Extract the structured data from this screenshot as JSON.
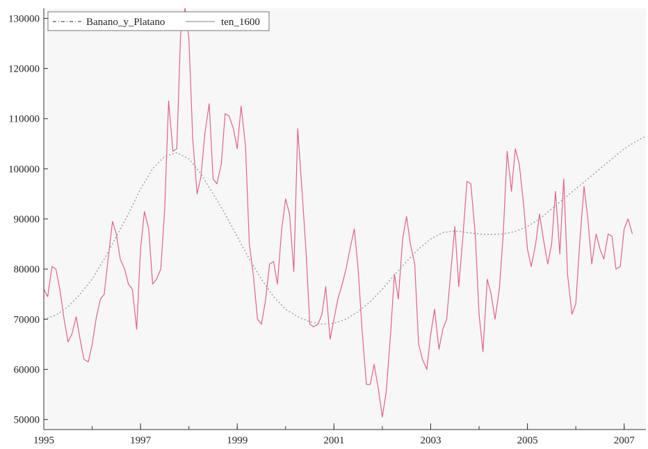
{
  "chart_data": {
    "type": "line",
    "title": "",
    "xlabel": "",
    "ylabel": "",
    "xlim": [
      1995.0,
      2007.45
    ],
    "ylim": [
      48000,
      132000
    ],
    "x_ticks": [
      1995,
      1997,
      1999,
      2001,
      2003,
      2005,
      2007
    ],
    "x_tick_labels": [
      "1995",
      "1997",
      "1999",
      "2001",
      "2003",
      "2005",
      "2007"
    ],
    "y_ticks": [
      50000,
      60000,
      70000,
      80000,
      90000,
      100000,
      110000,
      120000,
      130000
    ],
    "y_tick_labels": [
      "50000",
      "60000",
      "70000",
      "80000",
      "90000",
      "100000",
      "110000",
      "120000",
      "130000"
    ],
    "grid": false,
    "legend_position": "top-left",
    "series": [
      {
        "name": "Banano_y_Platano",
        "color": "#e0608f",
        "style": "solid",
        "points": [
          [
            1995.0,
            76000
          ],
          [
            1995.08,
            74500
          ],
          [
            1995.17,
            80500
          ],
          [
            1995.25,
            80000
          ],
          [
            1995.33,
            76000
          ],
          [
            1995.42,
            70000
          ],
          [
            1995.5,
            65500
          ],
          [
            1995.58,
            67000
          ],
          [
            1995.67,
            70500
          ],
          [
            1995.75,
            66000
          ],
          [
            1995.83,
            62000
          ],
          [
            1995.92,
            61500
          ],
          [
            1996.0,
            65000
          ],
          [
            1996.08,
            70000
          ],
          [
            1996.17,
            74000
          ],
          [
            1996.25,
            75000
          ],
          [
            1996.33,
            82000
          ],
          [
            1996.42,
            89500
          ],
          [
            1996.5,
            87000
          ],
          [
            1996.58,
            82000
          ],
          [
            1996.67,
            80000
          ],
          [
            1996.75,
            77000
          ],
          [
            1996.83,
            76000
          ],
          [
            1996.92,
            68000
          ],
          [
            1997.0,
            84000
          ],
          [
            1997.08,
            91500
          ],
          [
            1997.17,
            88000
          ],
          [
            1997.25,
            77000
          ],
          [
            1997.33,
            78000
          ],
          [
            1997.42,
            80000
          ],
          [
            1997.5,
            92000
          ],
          [
            1997.58,
            113500
          ],
          [
            1997.67,
            103500
          ],
          [
            1997.75,
            104000
          ],
          [
            1997.83,
            127000
          ],
          [
            1997.92,
            132000
          ],
          [
            1998.0,
            126000
          ],
          [
            1998.08,
            106000
          ],
          [
            1998.17,
            95000
          ],
          [
            1998.25,
            98500
          ],
          [
            1998.33,
            107000
          ],
          [
            1998.42,
            113000
          ],
          [
            1998.5,
            98000
          ],
          [
            1998.58,
            97000
          ],
          [
            1998.67,
            101000
          ],
          [
            1998.75,
            111000
          ],
          [
            1998.83,
            110500
          ],
          [
            1998.92,
            108000
          ],
          [
            1999.0,
            104000
          ],
          [
            1999.08,
            112500
          ],
          [
            1999.17,
            104500
          ],
          [
            1999.25,
            85000
          ],
          [
            1999.33,
            79000
          ],
          [
            1999.42,
            70000
          ],
          [
            1999.5,
            69000
          ],
          [
            1999.58,
            73500
          ],
          [
            1999.67,
            81000
          ],
          [
            1999.75,
            81500
          ],
          [
            1999.83,
            77000
          ],
          [
            1999.92,
            88000
          ],
          [
            2000.0,
            94000
          ],
          [
            2000.08,
            91000
          ],
          [
            2000.17,
            79500
          ],
          [
            2000.25,
            108000
          ],
          [
            2000.33,
            97000
          ],
          [
            2000.42,
            84000
          ],
          [
            2000.5,
            69000
          ],
          [
            2000.58,
            68500
          ],
          [
            2000.67,
            69000
          ],
          [
            2000.75,
            71000
          ],
          [
            2000.83,
            76500
          ],
          [
            2000.92,
            66000
          ],
          [
            2001.0,
            70000
          ],
          [
            2001.08,
            74000
          ],
          [
            2001.17,
            77000
          ],
          [
            2001.25,
            80000
          ],
          [
            2001.33,
            84000
          ],
          [
            2001.42,
            88000
          ],
          [
            2001.5,
            80000
          ],
          [
            2001.58,
            68000
          ],
          [
            2001.67,
            57000
          ],
          [
            2001.75,
            57000
          ],
          [
            2001.83,
            61000
          ],
          [
            2001.92,
            56000
          ],
          [
            2002.0,
            50500
          ],
          [
            2002.08,
            55500
          ],
          [
            2002.17,
            67000
          ],
          [
            2002.25,
            79000
          ],
          [
            2002.33,
            74000
          ],
          [
            2002.42,
            86000
          ],
          [
            2002.5,
            90500
          ],
          [
            2002.58,
            85000
          ],
          [
            2002.67,
            81000
          ],
          [
            2002.75,
            65000
          ],
          [
            2002.83,
            62000
          ],
          [
            2002.92,
            60000
          ],
          [
            2003.0,
            67000
          ],
          [
            2003.08,
            72000
          ],
          [
            2003.17,
            64000
          ],
          [
            2003.25,
            68000
          ],
          [
            2003.33,
            70000
          ],
          [
            2003.42,
            80000
          ],
          [
            2003.5,
            88500
          ],
          [
            2003.58,
            76500
          ],
          [
            2003.67,
            87000
          ],
          [
            2003.75,
            97500
          ],
          [
            2003.83,
            97000
          ],
          [
            2003.92,
            87000
          ],
          [
            2004.0,
            71000
          ],
          [
            2004.08,
            63500
          ],
          [
            2004.17,
            78000
          ],
          [
            2004.25,
            75000
          ],
          [
            2004.33,
            70000
          ],
          [
            2004.42,
            76000
          ],
          [
            2004.5,
            87000
          ],
          [
            2004.58,
            103500
          ],
          [
            2004.67,
            95500
          ],
          [
            2004.75,
            104000
          ],
          [
            2004.83,
            101000
          ],
          [
            2004.92,
            93000
          ],
          [
            2005.0,
            84000
          ],
          [
            2005.08,
            80500
          ],
          [
            2005.17,
            85000
          ],
          [
            2005.25,
            91000
          ],
          [
            2005.33,
            86000
          ],
          [
            2005.42,
            81000
          ],
          [
            2005.5,
            85000
          ],
          [
            2005.58,
            95500
          ],
          [
            2005.67,
            83000
          ],
          [
            2005.75,
            98000
          ],
          [
            2005.83,
            79000
          ],
          [
            2005.92,
            71000
          ],
          [
            2006.0,
            73000
          ],
          [
            2006.08,
            85000
          ],
          [
            2006.17,
            96500
          ],
          [
            2006.25,
            90000
          ],
          [
            2006.33,
            81000
          ],
          [
            2006.42,
            87000
          ],
          [
            2006.5,
            84000
          ],
          [
            2006.58,
            82000
          ],
          [
            2006.67,
            87000
          ],
          [
            2006.75,
            86500
          ],
          [
            2006.83,
            80000
          ],
          [
            2006.92,
            80500
          ],
          [
            2007.0,
            88000
          ],
          [
            2007.08,
            90000
          ],
          [
            2007.17,
            87000
          ]
        ]
      },
      {
        "name": "ten_1600",
        "color": "#9a9a9a",
        "style": "dotted",
        "points": [
          [
            1995.0,
            70000
          ],
          [
            1995.25,
            70800
          ],
          [
            1995.5,
            72500
          ],
          [
            1995.75,
            75000
          ],
          [
            1996.0,
            78000
          ],
          [
            1996.25,
            82000
          ],
          [
            1996.5,
            86500
          ],
          [
            1996.75,
            91000
          ],
          [
            1997.0,
            96000
          ],
          [
            1997.25,
            100000
          ],
          [
            1997.5,
            102500
          ],
          [
            1997.75,
            103200
          ],
          [
            1998.0,
            102000
          ],
          [
            1998.25,
            99000
          ],
          [
            1998.5,
            95000
          ],
          [
            1998.75,
            91000
          ],
          [
            1999.0,
            86500
          ],
          [
            1999.25,
            82000
          ],
          [
            1999.5,
            78000
          ],
          [
            1999.75,
            74500
          ],
          [
            2000.0,
            72000
          ],
          [
            2000.25,
            70500
          ],
          [
            2000.5,
            69500
          ],
          [
            2000.75,
            69000
          ],
          [
            2001.0,
            69200
          ],
          [
            2001.25,
            70000
          ],
          [
            2001.5,
            71500
          ],
          [
            2001.75,
            73500
          ],
          [
            2002.0,
            76000
          ],
          [
            2002.25,
            78800
          ],
          [
            2002.5,
            81500
          ],
          [
            2002.75,
            84000
          ],
          [
            2003.0,
            86000
          ],
          [
            2003.25,
            87300
          ],
          [
            2003.5,
            87600
          ],
          [
            2003.75,
            87300
          ],
          [
            2004.0,
            87000
          ],
          [
            2004.25,
            86900
          ],
          [
            2004.5,
            87000
          ],
          [
            2004.75,
            87500
          ],
          [
            2005.0,
            88500
          ],
          [
            2005.25,
            90000
          ],
          [
            2005.5,
            92000
          ],
          [
            2005.75,
            94000
          ],
          [
            2006.0,
            96000
          ],
          [
            2006.25,
            98000
          ],
          [
            2006.5,
            100000
          ],
          [
            2006.75,
            102000
          ],
          [
            2007.0,
            104000
          ],
          [
            2007.25,
            105500
          ],
          [
            2007.45,
            106500
          ]
        ]
      }
    ]
  }
}
